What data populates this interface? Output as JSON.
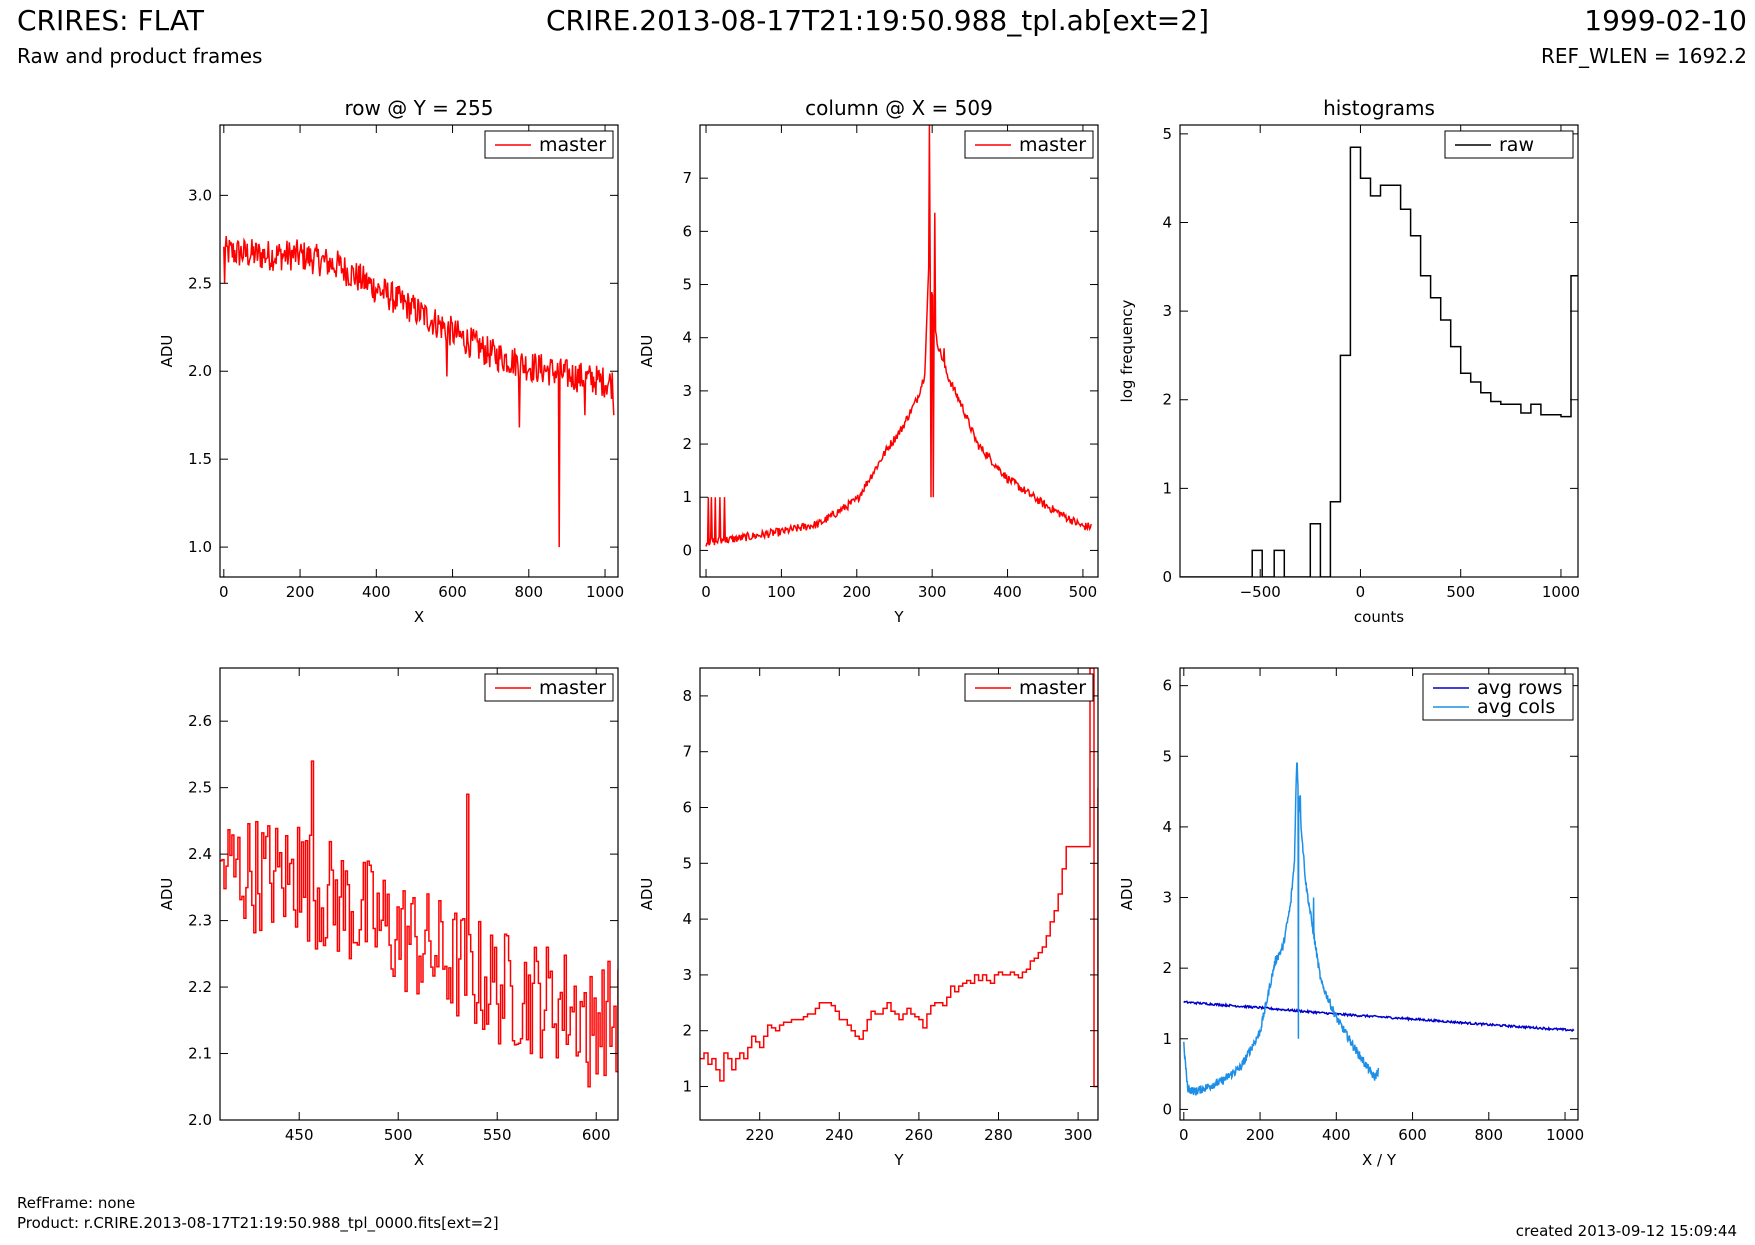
{
  "header": {
    "title_left": "CRIRES: FLAT",
    "subtitle_left": "Raw and product frames",
    "title_center": "CRIRE.2013-08-17T21:19:50.988_tpl.ab[ext=2]",
    "title_right": "1999-02-10",
    "subtitle_right": "REF_WLEN = 1692.2"
  },
  "footer": {
    "refframe": "RefFrame: none",
    "product": "Product: r.CRIRE.2013-08-17T21:19:50.988_tpl_0000.fits[ext=2]",
    "created": "created 2013-09-12 15:09:44"
  },
  "colors": {
    "red": "#ff0000",
    "dark_blue": "#0000cc",
    "light_blue": "#1e8fe6",
    "black": "#000000"
  },
  "chart_data": [
    {
      "id": "row",
      "type": "line",
      "title": "row @ Y = 255",
      "xlabel": "X",
      "ylabel": "ADU",
      "xlim": [
        -10,
        1034
      ],
      "ylim": [
        0.83,
        3.4
      ],
      "xticks": [
        0,
        200,
        400,
        600,
        800,
        1000
      ],
      "yticks": [
        1.0,
        1.5,
        2.0,
        2.5,
        3.0
      ],
      "ytick_format": "1",
      "legend": {
        "position": "top-right",
        "entries": [
          "master"
        ]
      },
      "series": [
        {
          "name": "master",
          "color": "#ff0000",
          "style": "noisy",
          "trend_x": [
            0,
            100,
            200,
            300,
            400,
            500,
            600,
            700,
            800,
            900,
            1023
          ],
          "trend_y": [
            2.68,
            2.66,
            2.66,
            2.6,
            2.47,
            2.35,
            2.22,
            2.1,
            2.03,
            1.98,
            1.93
          ],
          "noise": 0.09,
          "spikes": [
            [
              2,
              2.5
            ],
            [
              585,
              1.97
            ],
            [
              775,
              1.68
            ],
            [
              880,
              1.0
            ],
            [
              948,
              1.75
            ],
            [
              1023,
              1.75
            ]
          ]
        }
      ]
    },
    {
      "id": "column",
      "type": "line",
      "title": "column @ X = 509",
      "xlabel": "Y",
      "ylabel": "ADU",
      "xlim": [
        -8,
        520
      ],
      "ylim": [
        -0.5,
        8.0
      ],
      "xticks": [
        0,
        100,
        200,
        300,
        400,
        500
      ],
      "yticks": [
        0,
        1,
        2,
        3,
        4,
        5,
        6,
        7
      ],
      "ytick_format": "0",
      "legend": {
        "position": "top-right",
        "entries": [
          "master"
        ]
      },
      "series": [
        {
          "name": "master",
          "color": "#ff0000",
          "style": "noisy",
          "trend_x": [
            0,
            30,
            100,
            150,
            200,
            240,
            260,
            280,
            290,
            296,
            305,
            320,
            340,
            360,
            400,
            450,
            500,
            511
          ],
          "trend_y": [
            0.15,
            0.2,
            0.35,
            0.5,
            0.95,
            1.9,
            2.3,
            2.85,
            3.3,
            5.5,
            4.0,
            3.3,
            2.7,
            2.0,
            1.35,
            0.85,
            0.45,
            0.45
          ],
          "noise": 0.08,
          "spikes": [
            [
              3,
              1.0
            ],
            [
              7,
              1.0
            ],
            [
              12,
              1.0
            ],
            [
              18,
              1.0
            ],
            [
              25,
              1.0
            ],
            [
              296,
              8.0
            ],
            [
              298,
              1.0
            ],
            [
              302,
              1.0
            ],
            [
              304,
              6.35
            ],
            [
              316,
              3.8
            ]
          ]
        }
      ]
    },
    {
      "id": "histograms",
      "type": "line",
      "title": "histograms",
      "xlabel": "counts",
      "ylabel": "log frequency",
      "xlim": [
        -900,
        1085
      ],
      "ylim": [
        0,
        5.1
      ],
      "xticks": [
        -500,
        0,
        500,
        1000
      ],
      "yticks": [
        0,
        1,
        2,
        3,
        4,
        5
      ],
      "ytick_format": "0",
      "legend": {
        "position": "top-right",
        "entries": [
          "raw"
        ]
      },
      "series": [
        {
          "name": "raw",
          "color": "#000000",
          "style": "step",
          "x": [
            -900,
            -540,
            -540,
            -490,
            -490,
            -430,
            -430,
            -380,
            -380,
            -250,
            -250,
            -200,
            -200,
            -150,
            -150,
            -100,
            -100,
            -50,
            -50,
            0,
            0,
            50,
            50,
            100,
            100,
            200,
            200,
            250,
            250,
            300,
            300,
            350,
            350,
            400,
            400,
            450,
            450,
            500,
            500,
            550,
            550,
            600,
            600,
            650,
            650,
            700,
            700,
            800,
            800,
            850,
            850,
            900,
            900,
            1000,
            1000,
            1050,
            1050,
            1085
          ],
          "y": [
            0,
            0,
            0.3,
            0.3,
            0,
            0,
            0.3,
            0.3,
            0,
            0,
            0.6,
            0.6,
            0,
            0,
            0.85,
            0.85,
            2.5,
            2.5,
            4.85,
            4.85,
            4.5,
            4.5,
            4.3,
            4.3,
            4.42,
            4.42,
            4.15,
            4.15,
            3.85,
            3.85,
            3.4,
            3.4,
            3.15,
            3.15,
            2.9,
            2.9,
            2.6,
            2.6,
            2.3,
            2.3,
            2.2,
            2.2,
            2.08,
            2.08,
            1.98,
            1.98,
            1.95,
            1.95,
            1.85,
            1.85,
            1.95,
            1.95,
            1.83,
            1.83,
            1.81,
            1.81,
            3.4,
            3.4
          ]
        }
      ]
    },
    {
      "id": "row-zoom",
      "type": "line",
      "title": "",
      "xlabel": "X",
      "ylabel": "ADU",
      "xlim": [
        410,
        611
      ],
      "ylim": [
        2.0,
        2.68
      ],
      "xticks": [
        450,
        500,
        550,
        600
      ],
      "yticks": [
        2.0,
        2.1,
        2.2,
        2.3,
        2.4,
        2.5,
        2.6
      ],
      "ytick_format": "1",
      "legend": {
        "position": "top-right",
        "entries": [
          "master"
        ]
      },
      "series": [
        {
          "name": "master",
          "color": "#ff0000",
          "style": "step-noisy",
          "trend_x": [
            410,
            450,
            500,
            550,
            611
          ],
          "trend_y": [
            2.38,
            2.36,
            2.28,
            2.2,
            2.15
          ],
          "noise": 0.09,
          "spikes": [
            [
              456,
              2.54
            ],
            [
              535,
              2.49
            ],
            [
              596,
              2.05
            ],
            [
              449,
              2.44
            ]
          ]
        }
      ]
    },
    {
      "id": "column-zoom",
      "type": "line",
      "title": "",
      "xlabel": "Y",
      "ylabel": "ADU",
      "xlim": [
        205,
        305
      ],
      "ylim": [
        0.4,
        8.5
      ],
      "xticks": [
        220,
        240,
        260,
        280,
        300
      ],
      "yticks": [
        1,
        2,
        3,
        4,
        5,
        6,
        7,
        8
      ],
      "ytick_format": "0",
      "legend": {
        "position": "top-right",
        "entries": [
          "master"
        ]
      },
      "series": [
        {
          "name": "master",
          "color": "#ff0000",
          "style": "step",
          "x": [
            205,
            206,
            207,
            208,
            209,
            210,
            211,
            212,
            213,
            214,
            215,
            216,
            217,
            218,
            219,
            220,
            221,
            222,
            223,
            224,
            225,
            226,
            227,
            228,
            229,
            230,
            231,
            232,
            233,
            234,
            235,
            236,
            237,
            238,
            239,
            240,
            241,
            242,
            243,
            244,
            245,
            246,
            247,
            248,
            249,
            250,
            251,
            252,
            253,
            254,
            255,
            256,
            257,
            258,
            259,
            260,
            261,
            262,
            263,
            264,
            265,
            266,
            267,
            268,
            269,
            270,
            271,
            272,
            273,
            274,
            275,
            276,
            277,
            278,
            279,
            280,
            281,
            282,
            283,
            284,
            285,
            286,
            287,
            288,
            289,
            290,
            291,
            292,
            293,
            294,
            295,
            296,
            297,
            303,
            304,
            305
          ],
          "y": [
            1.5,
            1.6,
            1.4,
            1.5,
            1.3,
            1.1,
            1.6,
            1.5,
            1.3,
            1.5,
            1.6,
            1.5,
            1.7,
            1.9,
            1.8,
            1.7,
            1.9,
            2.1,
            2.05,
            2.0,
            2.1,
            2.15,
            2.15,
            2.2,
            2.2,
            2.2,
            2.25,
            2.3,
            2.3,
            2.4,
            2.5,
            2.5,
            2.5,
            2.45,
            2.35,
            2.2,
            2.2,
            2.1,
            2.0,
            1.9,
            1.85,
            2.0,
            2.2,
            2.35,
            2.3,
            2.3,
            2.4,
            2.5,
            2.35,
            2.3,
            2.2,
            2.3,
            2.4,
            2.3,
            2.25,
            2.2,
            2.05,
            2.3,
            2.45,
            2.5,
            2.5,
            2.45,
            2.6,
            2.8,
            2.7,
            2.8,
            2.85,
            2.9,
            2.85,
            3.0,
            2.9,
            3.0,
            2.9,
            2.85,
            3.0,
            3.05,
            3.0,
            3.0,
            3.05,
            3.0,
            2.95,
            3.05,
            3.1,
            3.25,
            3.3,
            3.4,
            3.5,
            3.7,
            3.95,
            4.15,
            4.45,
            4.9,
            5.3,
            8.5,
            1.0,
            6.35
          ]
        }
      ]
    },
    {
      "id": "averages",
      "type": "line",
      "title": "",
      "xlabel": "X / Y",
      "ylabel": "ADU",
      "xlim": [
        -10,
        1034
      ],
      "ylim": [
        -0.15,
        6.25
      ],
      "xticks": [
        0,
        200,
        400,
        600,
        800,
        1000
      ],
      "yticks": [
        0,
        1,
        2,
        3,
        4,
        5,
        6
      ],
      "ytick_format": "0",
      "legend": {
        "position": "top-right",
        "entries": [
          "avg rows",
          "avg cols"
        ]
      },
      "series": [
        {
          "name": "avg rows",
          "color": "#0000cc",
          "style": "noisy",
          "trend_x": [
            0,
            200,
            400,
            600,
            800,
            1023
          ],
          "trend_y": [
            1.52,
            1.44,
            1.35,
            1.28,
            1.2,
            1.12
          ],
          "noise": 0.015,
          "spikes": []
        },
        {
          "name": "avg cols",
          "color": "#1e8fe6",
          "style": "noisy",
          "trend_x": [
            0,
            10,
            30,
            100,
            150,
            200,
            240,
            260,
            280,
            290,
            296,
            305,
            320,
            340,
            360,
            400,
            450,
            500,
            511
          ],
          "trend_y": [
            0.9,
            0.3,
            0.25,
            0.4,
            0.6,
            1.1,
            2.1,
            2.3,
            2.9,
            3.5,
            4.9,
            4.2,
            3.2,
            2.5,
            1.8,
            1.3,
            0.85,
            0.45,
            0.55
          ],
          "noise": 0.06,
          "spikes": [
            [
              297,
              4.9
            ],
            [
              300,
              1.0
            ],
            [
              306,
              4.45
            ],
            [
              340,
              3.0
            ]
          ]
        }
      ]
    }
  ]
}
